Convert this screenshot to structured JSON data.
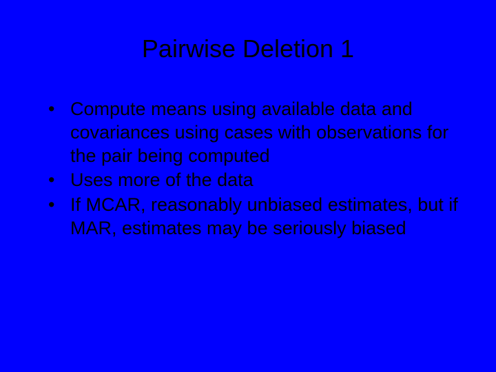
{
  "slide": {
    "title": "Pairwise Deletion 1",
    "bullets": [
      "Compute means using available data and covariances using cases with observations for the pair being computed",
      "Uses more of the data",
      "If MCAR, reasonably unbiased estimates, but if MAR, estimates may be seriously biased"
    ],
    "background_color": "#0000ff",
    "text_color": "#000000",
    "title_fontsize": 36,
    "bullet_fontsize": 27,
    "font_family": "Arial"
  }
}
